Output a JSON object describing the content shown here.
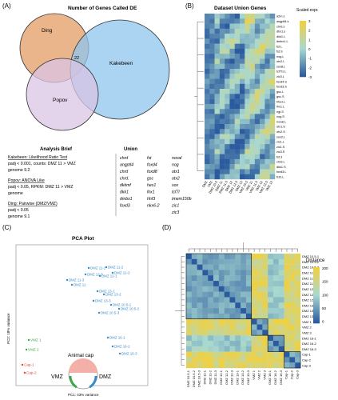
{
  "panel_labels": {
    "a": "(A)",
    "b": "(B)",
    "c": "(C)",
    "d": "(D)"
  },
  "venn": {
    "title": "Number of Genes Called DE",
    "sets": [
      {
        "name": "Ding",
        "color": "#e8a878"
      },
      {
        "name": "Kakebeen",
        "color": "#8fc6ee"
      },
      {
        "name": "Popov",
        "color": "#d9c4e4"
      }
    ],
    "center_count": "22"
  },
  "analysis": {
    "title": "Analysis Brief",
    "lines": [
      "Kakebeen: Likelihood Ratio Test",
      "padj < 0.001, counts: DMZ 11 > VMZ",
      "genome 9.2",
      "",
      "Popov: ANOVA Like",
      "padj < 0.05, RPKM: DMZ 11 > VMZ",
      "genome",
      "",
      "Ding: Pairwise (DMZ/VMZ)",
      "padj < 0.05",
      "genome 9.1"
    ]
  },
  "union": {
    "title": "Union",
    "columns": [
      [
        "chrd",
        "angptl4",
        "chrd",
        "chrd.",
        "dkkmf",
        "dkk1",
        "dmbx1",
        "foxd3"
      ],
      [
        "fst",
        "foxd4",
        "foxd8",
        "gsc",
        "hes1",
        "lhx1",
        "hhf3",
        "nkx6-2"
      ],
      [
        "noval",
        "nog",
        "otx1",
        "otx2",
        "sox",
        "tcf7l",
        "tmem150b",
        "zic1",
        "zic3"
      ]
    ]
  },
  "heatmap": {
    "title": "Dataset Union Genes",
    "legend_title": "Scaled\nexpr.",
    "legend_ticks": [
      "3",
      "2",
      "1",
      "0",
      "-1",
      "-2",
      "-3"
    ],
    "row_labels": [
      "a2m.s",
      "angptl4.s",
      "chrd.s",
      "dbx1.s",
      "dkk1.L",
      "dmbx1.L",
      "fst.L",
      "fst.S",
      "nog.L",
      "otx2.L",
      "sox8.L",
      "tcf7l1.L",
      "zic3.L",
      "foxd4.S",
      "foxd3.S",
      "gsc.L",
      "gsc.S",
      "hhex.L",
      "lhx1.L",
      "ngt.S",
      "nog.S",
      "noval.L",
      "otx1.S",
      "otx2.S",
      "sox2.L",
      "zic1.L",
      "zic1.S",
      "zic3.S",
      "fst.3",
      "chrd.L",
      "dkk1.S",
      "foxd3.L",
      "frzb.L"
    ],
    "col_labels": [
      "DMZ",
      "VMZ",
      "DMZ 10.5",
      "DMZ 11",
      "DMZ 11.5",
      "DMZ 12",
      "DMZ 12.5",
      "DMZ 13",
      "VMZ 10.5",
      "VMZ 11",
      "VMZ 11.5",
      "VMZ 12",
      "VMZ 12.5",
      "VMZ 13"
    ]
  },
  "pca": {
    "title": "PCA Plot",
    "xlabel": "PC1: 43% variance",
    "ylabel": "PC2: 18% variance",
    "blue_labels": [
      "DMZ 11-1",
      "DMZ 11-2",
      "DMZ 12-2",
      "DMZ 12-1",
      "DMZ 11-3",
      "DMZ 12-3",
      "DMZ 11",
      "DMZ 13-1",
      "DMZ 13-2",
      "DMZ 13-3",
      "DMZ 10.5-1",
      "DMZ 10.5-2",
      "DMZ 10.5-3",
      "DMZ 16-1",
      "DMZ 16-2",
      "DMZ 16-3"
    ],
    "green_labels": [
      "VMZ 1",
      "VMZ 2"
    ],
    "red_labels": [
      "Cap-1",
      "Cap-2"
    ],
    "embryo": {
      "animal_cap": "Animal cap",
      "vmz": "VMZ",
      "dmz": "DMZ"
    }
  },
  "distance": {
    "legend_title": "Distance",
    "legend_ticks": [
      "200",
      "150",
      "100",
      "50",
      "0"
    ],
    "labels": [
      "DMZ 10.5-1",
      "DMZ 10.5-2",
      "DMZ 10.5-3",
      "DMZ 11-1",
      "DMZ 11-2",
      "DMZ 11-3",
      "DMZ 12-1",
      "DMZ 12-2",
      "DMZ 12-3",
      "DMZ 13-1",
      "DMZ 13-2",
      "DMZ 13-3",
      "VMZ 1",
      "VMZ 2",
      "VMZ 3",
      "DMZ 16-1",
      "DMZ 16-2",
      "DMZ 16-3",
      "Cap-1",
      "Cap-2",
      "Cap-3"
    ]
  },
  "colors": {
    "ding": "#e8a878",
    "kakebeen": "#8fc6ee",
    "popov": "#d9c4e4",
    "heat_low": "#2b5b9e",
    "heat_mid": "#a8d8d0",
    "heat_high": "#f0d040",
    "pca_blue": "#3a8ac8",
    "pca_green": "#3ca848",
    "pca_red": "#d84840"
  }
}
